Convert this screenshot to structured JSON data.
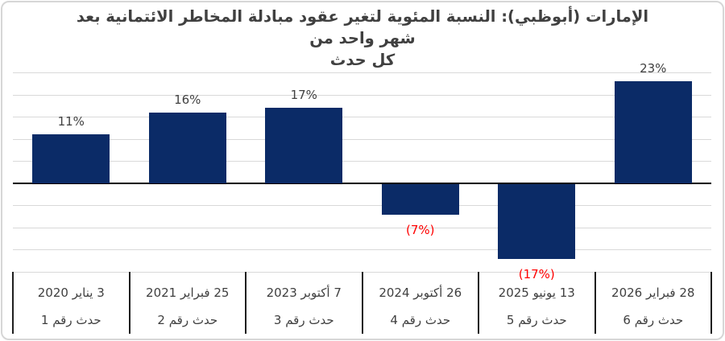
{
  "title": {
    "full": "الإمارات (أبوظبي): النسبة المئوية لتغير عقود مبادلة المخاطر الائتمانية بعد شهر واحد من كل حدث",
    "line1": "الإمارات (أبوظبي): النسبة المئوية لتغير عقود مبادلة المخاطر الائتمانية بعد شهر واحد من",
    "line2": "كل حدث"
  },
  "chart_data": {
    "type": "bar",
    "title": "الإمارات (أبوظبي): النسبة المئوية لتغير عقود مبادلة المخاطر الائتمانية بعد شهر واحد من كل حدث",
    "direction": "rtl",
    "categories": [
      "3 يناير 2020",
      "25 فبراير 2021",
      "7 أكتوبر 2023",
      "26 أكتوبر 2024",
      "13 يونيو 2025",
      "28 فبراير 2026"
    ],
    "category_sublabels": [
      "حدث رقم 1",
      "حدث رقم 2",
      "حدث رقم 3",
      "حدث رقم 4",
      "حدث رقم 5",
      "حدث رقم 6"
    ],
    "values": [
      11,
      16,
      17,
      -7,
      -17,
      23
    ],
    "value_labels": [
      "11%",
      "16%",
      "17%",
      "(7%)",
      "(17%)",
      "23%"
    ],
    "unit": "%",
    "ylim": [
      -20,
      25
    ],
    "gridline_step": 5,
    "grid": true,
    "legend": false,
    "colors": {
      "bar": "#0b2b67",
      "positive_label": "#404040",
      "negative_label": "#ff0000",
      "gridline": "#d9d9d9",
      "axis": "#000000",
      "category_separator": "#1f1f1f",
      "category_text": "#3f3f3f",
      "title_text": "#404040",
      "frame_border": "#d6d6d6"
    }
  }
}
